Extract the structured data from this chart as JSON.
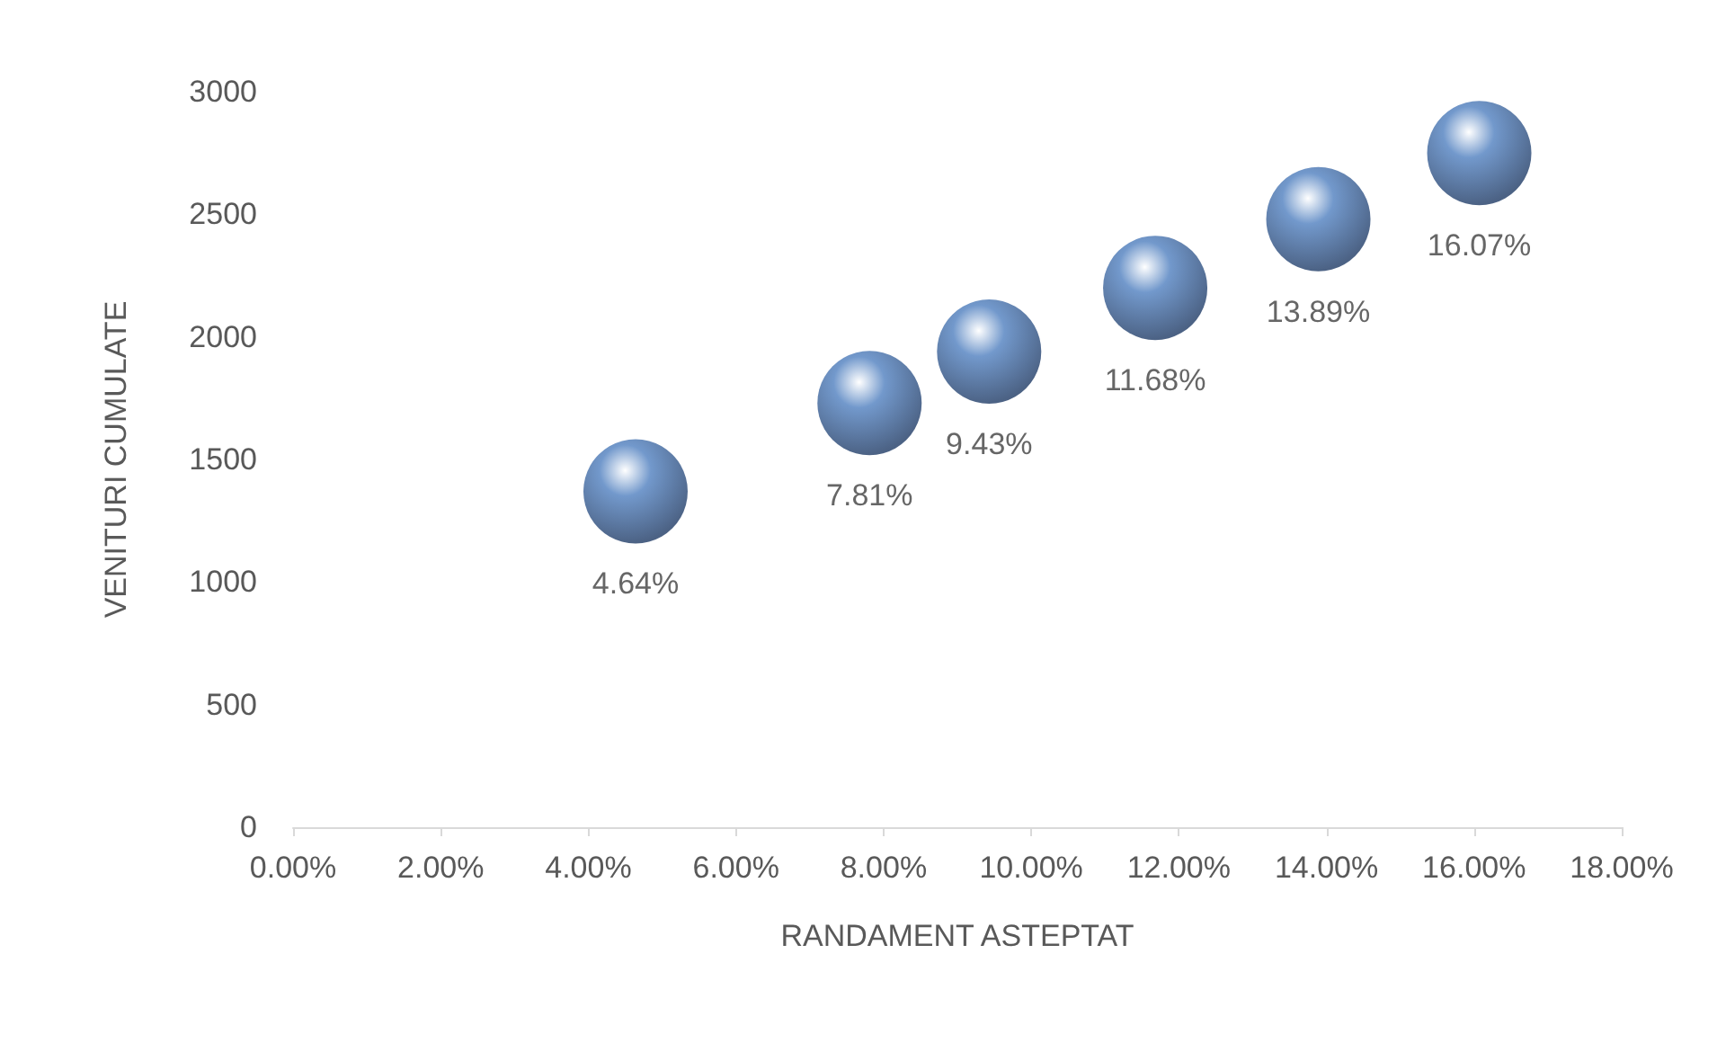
{
  "chart_data": {
    "type": "bubble",
    "xlabel": "RANDAMENT ASTEPTAT",
    "ylabel": "VENITURI CUMULATE",
    "x": [
      4.64,
      7.81,
      9.43,
      11.68,
      13.89,
      16.07
    ],
    "values": [
      1370,
      1730,
      1940,
      2200,
      2480,
      2750
    ],
    "sizes": [
      1,
      1,
      1,
      1,
      1,
      1
    ],
    "annotations": [
      {
        "text": "4.64%",
        "x": 4.64,
        "y": 1370
      },
      {
        "text": "7.81%",
        "x": 7.81,
        "y": 1730
      },
      {
        "text": "9.43%",
        "x": 9.43,
        "y": 1940
      },
      {
        "text": "11.68%",
        "x": 11.68,
        "y": 2200
      },
      {
        "text": "13.89%",
        "x": 13.89,
        "y": 2480
      },
      {
        "text": "16.07%",
        "x": 16.07,
        "y": 2750
      }
    ],
    "color": "#4f7fbf",
    "xlim": [
      0,
      18
    ],
    "xticks": [
      {
        "value": 0,
        "label": "0.00%"
      },
      {
        "value": 2,
        "label": "2.00%"
      },
      {
        "value": 4,
        "label": "4.00%"
      },
      {
        "value": 6,
        "label": "6.00%"
      },
      {
        "value": 8,
        "label": "8.00%"
      },
      {
        "value": 10,
        "label": "10.00%"
      },
      {
        "value": 12,
        "label": "12.00%"
      },
      {
        "value": 14,
        "label": "14.00%"
      },
      {
        "value": 16,
        "label": "16.00%"
      },
      {
        "value": 18,
        "label": "18.00%"
      }
    ],
    "ylim": [
      0,
      3000
    ],
    "yticks": [
      0,
      500,
      1000,
      1500,
      2000,
      2500,
      3000
    ],
    "grid": false
  }
}
